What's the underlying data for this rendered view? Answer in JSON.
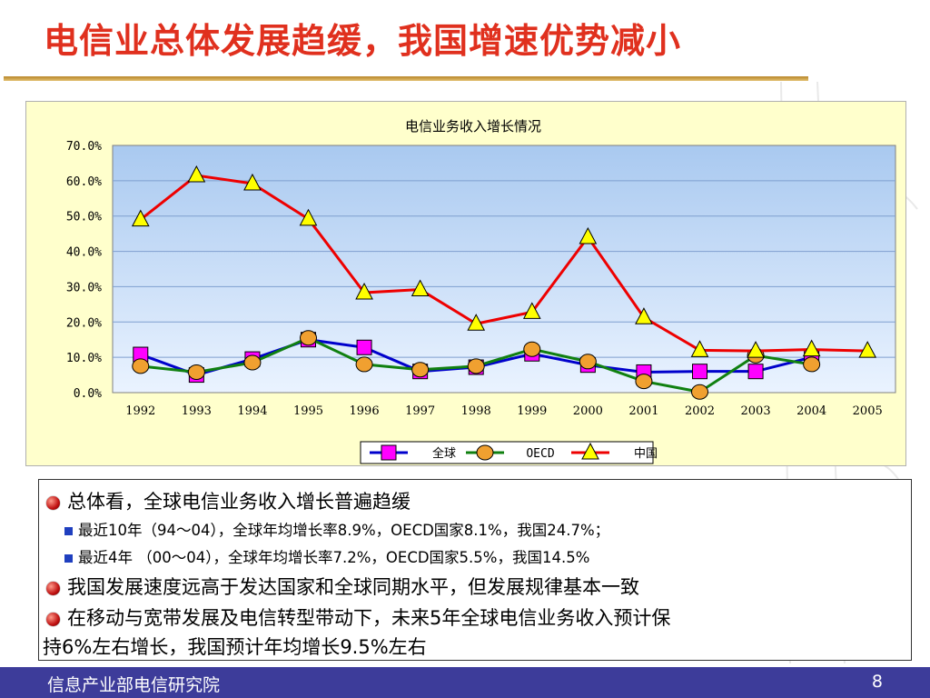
{
  "slide": {
    "title": "电信业总体发展趋缓，我国增速优势减小",
    "footer_org": "信息产业部电信研究院",
    "page_number": "8"
  },
  "text_points": {
    "p1": "总体看，全球电信业务收入增长普遍趋缓",
    "p1a": "最近10年（94～04），全球年均增长率8.9%，OECD国家8.1%，我国24.7%；",
    "p1b": "最近4年 （00～04），全球年均增长率7.2%，OECD国家5.5%，我国14.5%",
    "p2": "我国发展速度远高于发达国家和全球同期水平，但发展规律基本一致",
    "p3_line1": "在移动与宽带发展及电信转型带动下，未来5年全球电信业务收入预计保",
    "p3_line2": "持6%左右增长，我国预计年均增长9.5%左右"
  },
  "chart_data": {
    "type": "line",
    "title": "电信业务收入增长情况",
    "xlabel": "",
    "ylabel": "",
    "ylim": [
      0,
      70
    ],
    "ytick_labels": [
      "70.0%",
      "60.0%",
      "50.0%",
      "40.0%",
      "30.0%",
      "20.0%",
      "10.0%",
      "0.0%"
    ],
    "categories": [
      "1992",
      "1993",
      "1994",
      "1995",
      "1996",
      "1997",
      "1998",
      "1999",
      "2000",
      "2001",
      "2002",
      "2003",
      "2004",
      "2005"
    ],
    "grid": true,
    "legend_position": "bottom",
    "series": [
      {
        "name": "全球",
        "color": "#0000cc",
        "marker": "square",
        "marker_color": "#ff00ff",
        "values": [
          10.8,
          5.0,
          9.5,
          15.0,
          12.8,
          6.0,
          7.2,
          11.0,
          7.8,
          5.8,
          6.0,
          6.0,
          10.0,
          null
        ]
      },
      {
        "name": "OECD",
        "color": "#108010",
        "marker": "circle",
        "marker_color": "#f0a030",
        "values": [
          7.5,
          5.8,
          8.5,
          15.5,
          8.0,
          6.5,
          7.5,
          12.3,
          8.8,
          3.2,
          0.2,
          10.5,
          8.0,
          null
        ]
      },
      {
        "name": "中国",
        "color": "#ee0000",
        "marker": "triangle",
        "marker_color": "#ffff00",
        "values": [
          49.0,
          61.5,
          59.2,
          49.2,
          28.3,
          29.2,
          19.5,
          22.8,
          44.0,
          21.3,
          12.0,
          11.8,
          12.2,
          11.8
        ]
      }
    ]
  }
}
